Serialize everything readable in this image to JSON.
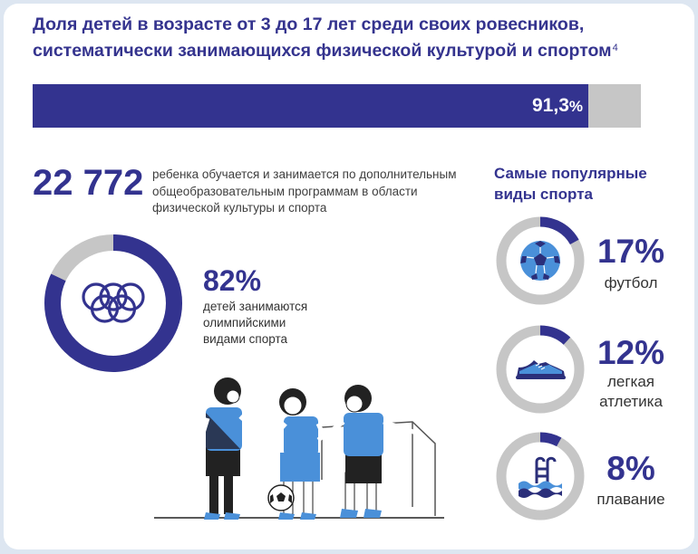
{
  "title": {
    "text": "Доля детей в возрасте от 3 до 17 лет среди своих ровесников, систематически занимающихся физической культурой и спортом",
    "footnote": "4"
  },
  "main_bar": {
    "value": 91.3,
    "label": "91,3",
    "unit": "%",
    "fill_color": "#33338f",
    "track_color": "#c6c6c6"
  },
  "students": {
    "count": "22 772",
    "description": "ребенка обучается и занимается по дополнительным общеобразовательным программам в области физической культуры  и спорта"
  },
  "olympic": {
    "value": 82,
    "percent_label": "82%",
    "text": "детей занимаются олимпийскими видами спорта",
    "icon": "olympic-rings-icon"
  },
  "popular": {
    "title": "Самые популярные виды спорта",
    "items": [
      {
        "value": 17,
        "percent_label": "17%",
        "label": "футбол",
        "icon": "soccer-ball-icon"
      },
      {
        "value": 12,
        "percent_label": "12%",
        "label": "легкая атлетика",
        "icon": "sneaker-icon"
      },
      {
        "value": 8,
        "percent_label": "8%",
        "label": "плавание",
        "icon": "swimming-pool-icon"
      }
    ]
  },
  "colors": {
    "primary": "#33338f",
    "grey": "#c6c6c6",
    "accent_blue": "#4a90d9"
  }
}
